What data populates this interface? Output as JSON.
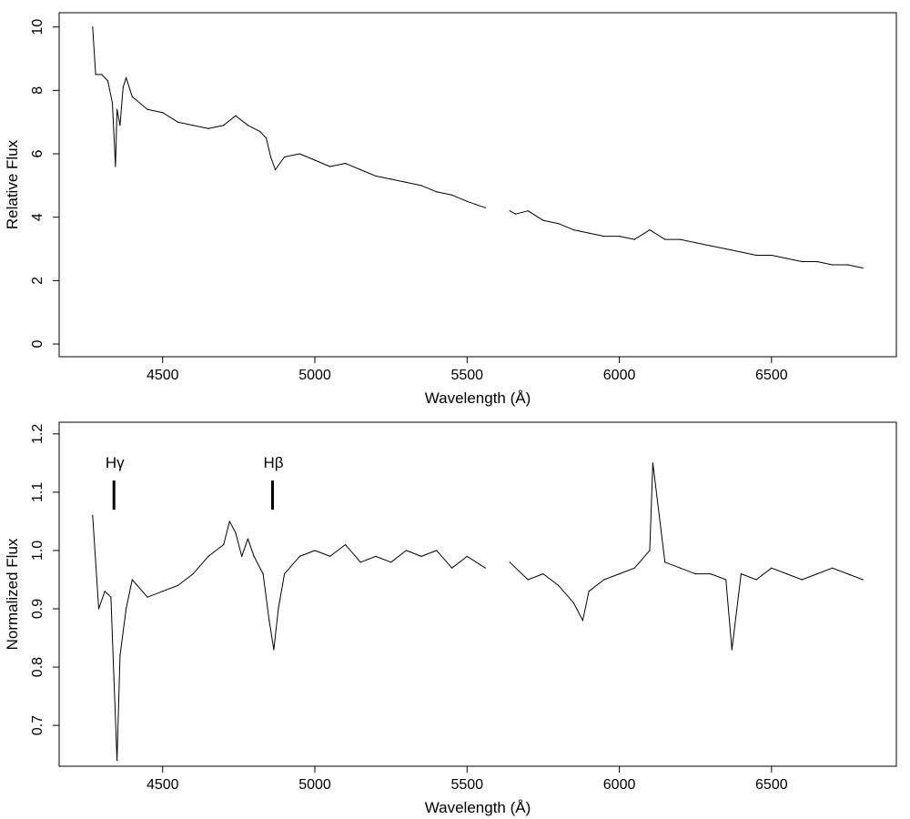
{
  "chart_data": [
    {
      "type": "line",
      "title": "",
      "xlabel": "Wavelength (Å)",
      "ylabel": "Relative Flux",
      "xlim": [
        4160,
        6910
      ],
      "ylim": [
        -0.4,
        10.45
      ],
      "x_ticks": [
        "4500",
        "5000",
        "5500",
        "6000",
        "6500"
      ],
      "y_ticks": [
        "0",
        "2",
        "4",
        "6",
        "8",
        "10"
      ],
      "grid": false,
      "legend": "none",
      "line_color": "#000000",
      "series": [
        {
          "gap": [
            5565,
            5640
          ],
          "x": [
            4270,
            4280,
            4300,
            4320,
            4335,
            4345,
            4350,
            4360,
            4370,
            4380,
            4400,
            4450,
            4500,
            4550,
            4600,
            4650,
            4700,
            4740,
            4780,
            4820,
            4840,
            4855,
            4870,
            4900,
            4950,
            5000,
            5050,
            5100,
            5150,
            5200,
            5250,
            5300,
            5350,
            5400,
            5450,
            5500,
            5530,
            5560,
            5640,
            5660,
            5700,
            5750,
            5800,
            5850,
            5900,
            5950,
            6000,
            6050,
            6100,
            6150,
            6200,
            6250,
            6300,
            6350,
            6400,
            6450,
            6500,
            6550,
            6600,
            6650,
            6700,
            6750,
            6800
          ],
          "y": [
            10.0,
            8.5,
            8.5,
            8.3,
            7.6,
            5.6,
            7.4,
            6.9,
            8.1,
            8.4,
            7.8,
            7.4,
            7.3,
            7.0,
            6.9,
            6.8,
            6.9,
            7.2,
            6.9,
            6.7,
            6.5,
            5.9,
            5.5,
            5.9,
            6.0,
            5.8,
            5.6,
            5.7,
            5.5,
            5.3,
            5.2,
            5.1,
            5.0,
            4.8,
            4.7,
            4.5,
            4.4,
            4.3,
            4.2,
            4.1,
            4.2,
            3.9,
            3.8,
            3.6,
            3.5,
            3.4,
            3.4,
            3.3,
            3.6,
            3.3,
            3.3,
            3.2,
            3.1,
            3.0,
            2.9,
            2.8,
            2.8,
            2.7,
            2.6,
            2.6,
            2.5,
            2.5,
            2.4
          ]
        }
      ]
    },
    {
      "type": "line",
      "title": "",
      "xlabel": "Wavelength (Å)",
      "ylabel": "Normalized Flux",
      "xlim": [
        4160,
        6910
      ],
      "ylim": [
        0.63,
        1.22
      ],
      "x_ticks": [
        "4500",
        "5000",
        "5500",
        "6000",
        "6500"
      ],
      "y_ticks": [
        "0.7",
        "0.8",
        "0.9",
        "1.0",
        "1.1",
        "1.2"
      ],
      "grid": false,
      "legend": "none",
      "line_color": "#000000",
      "annotations": [
        {
          "label": "Hγ",
          "x": 4340
        },
        {
          "label": "Hβ",
          "x": 4861
        }
      ],
      "series": [
        {
          "gap": [
            5565,
            5640
          ],
          "x": [
            4270,
            4290,
            4310,
            4330,
            4340,
            4350,
            4360,
            4380,
            4400,
            4450,
            4500,
            4550,
            4600,
            4650,
            4700,
            4720,
            4740,
            4760,
            4780,
            4800,
            4830,
            4850,
            4865,
            4880,
            4900,
            4950,
            5000,
            5050,
            5100,
            5150,
            5200,
            5250,
            5300,
            5350,
            5400,
            5450,
            5500,
            5560,
            5640,
            5700,
            5750,
            5800,
            5850,
            5880,
            5900,
            5950,
            6000,
            6050,
            6100,
            6110,
            6150,
            6200,
            6250,
            6300,
            6350,
            6370,
            6400,
            6450,
            6500,
            6550,
            6600,
            6650,
            6700,
            6750,
            6800
          ],
          "y": [
            1.06,
            0.9,
            0.93,
            0.92,
            0.78,
            0.64,
            0.82,
            0.9,
            0.95,
            0.92,
            0.93,
            0.94,
            0.96,
            0.99,
            1.01,
            1.05,
            1.03,
            0.99,
            1.02,
            0.99,
            0.96,
            0.88,
            0.83,
            0.9,
            0.96,
            0.99,
            1.0,
            0.99,
            1.01,
            0.98,
            0.99,
            0.98,
            1.0,
            0.99,
            1.0,
            0.97,
            0.99,
            0.97,
            0.98,
            0.95,
            0.96,
            0.94,
            0.91,
            0.88,
            0.93,
            0.95,
            0.96,
            0.97,
            1.0,
            1.15,
            0.98,
            0.97,
            0.96,
            0.96,
            0.95,
            0.83,
            0.96,
            0.95,
            0.97,
            0.96,
            0.95,
            0.96,
            0.97,
            0.96,
            0.95
          ]
        }
      ]
    }
  ]
}
